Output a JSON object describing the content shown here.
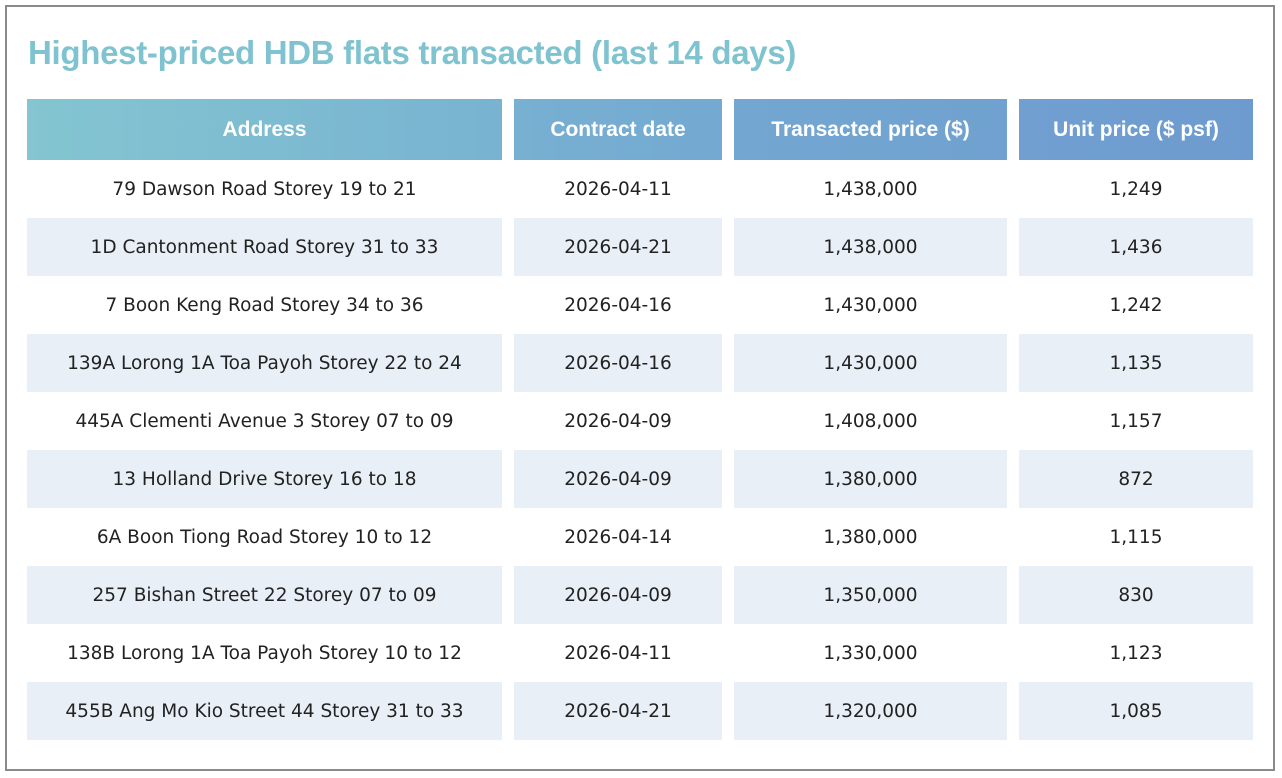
{
  "title": "Highest-priced HDB flats transacted (last 14 days)",
  "table": {
    "headers": [
      "Address",
      "Contract date",
      "Transacted price ($)",
      "Unit price ($ psf)"
    ],
    "rows": [
      [
        "79 Dawson Road Storey 19 to 21",
        "2026-04-11",
        "1,438,000",
        "1,249"
      ],
      [
        "1D Cantonment Road Storey 31 to 33",
        "2026-04-21",
        "1,438,000",
        "1,436"
      ],
      [
        "7 Boon Keng Road Storey 34 to 36",
        "2026-04-16",
        "1,430,000",
        "1,242"
      ],
      [
        "139A Lorong 1A Toa Payoh Storey 22 to 24",
        "2026-04-16",
        "1,430,000",
        "1,135"
      ],
      [
        "445A Clementi Avenue 3 Storey 07 to 09",
        "2026-04-09",
        "1,408,000",
        "1,157"
      ],
      [
        "13 Holland Drive Storey 16 to 18",
        "2026-04-09",
        "1,380,000",
        "872"
      ],
      [
        "6A Boon Tiong Road Storey 10 to 12",
        "2026-04-14",
        "1,380,000",
        "1,115"
      ],
      [
        "257 Bishan Street 22 Storey 07 to 09",
        "2026-04-09",
        "1,350,000",
        "830"
      ],
      [
        "138B Lorong 1A Toa Payoh Storey 10 to 12",
        "2026-04-11",
        "1,330,000",
        "1,123"
      ],
      [
        "455B Ang Mo Kio Street 44 Storey 31 to 33",
        "2026-04-21",
        "1,320,000",
        "1,085"
      ]
    ]
  }
}
